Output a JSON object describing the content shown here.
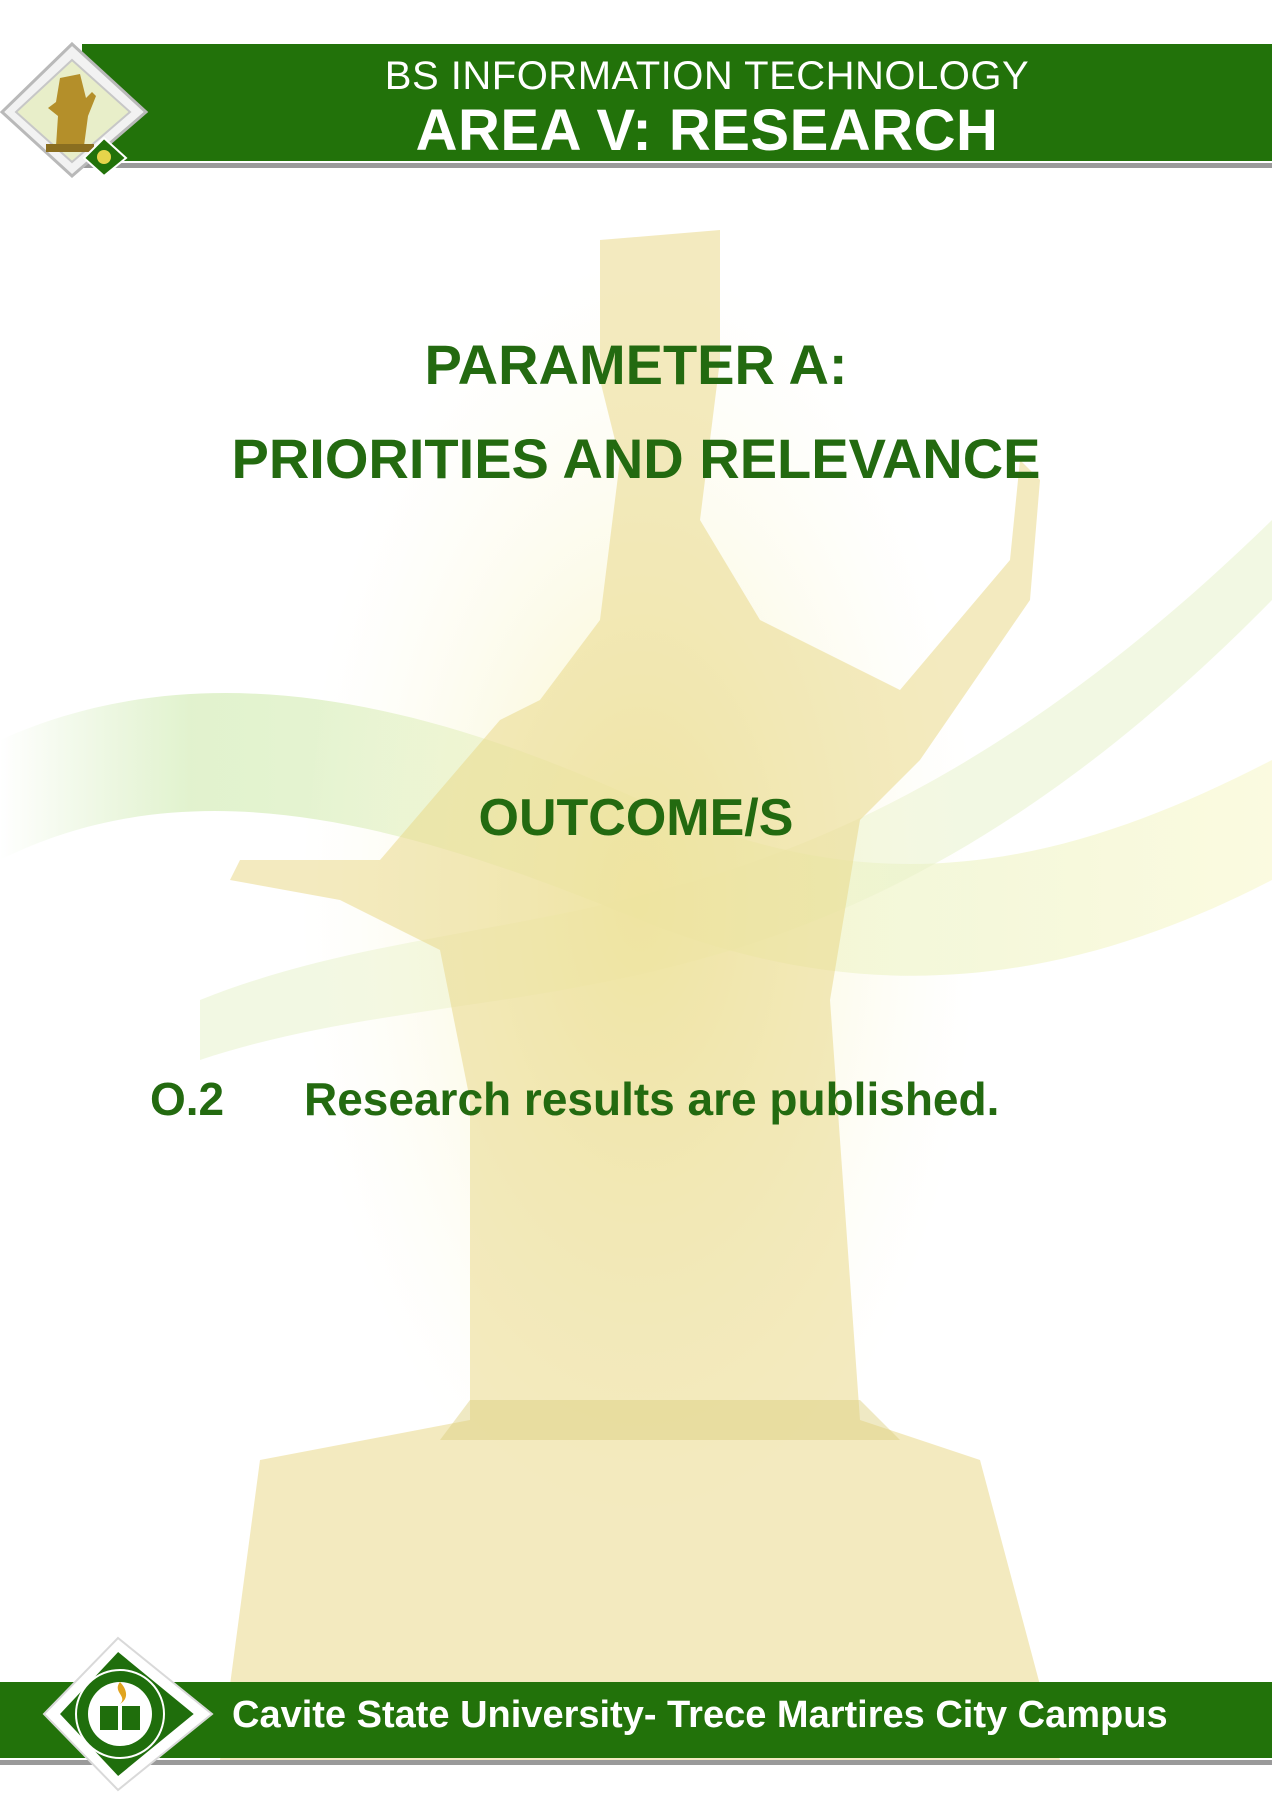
{
  "header": {
    "program": "BS INFORMATION TECHNOLOGY",
    "area": "AREA V: RESEARCH"
  },
  "parameter": {
    "line1": "PARAMETER A:",
    "line2": "PRIORITIES AND RELEVANCE"
  },
  "outcomes": {
    "heading": "OUTCOME/S",
    "items": [
      {
        "code": "O.2",
        "text": "Research results are published."
      }
    ]
  },
  "footer": {
    "campus": "Cavite State University- Trece Martires City Campus"
  },
  "colors": {
    "band_green": "#22720a",
    "title_green": "#236a10",
    "rule_gray": "#9a9a9a"
  }
}
